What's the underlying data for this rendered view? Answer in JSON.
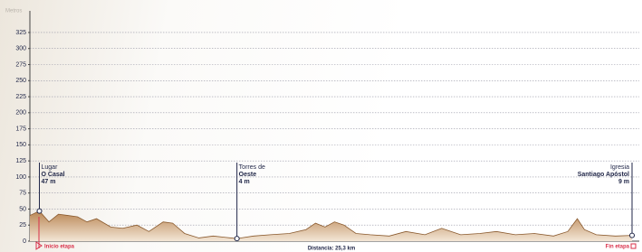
{
  "chart_data": {
    "type": "area",
    "ylabel": "Metros",
    "xlabel": "Distancia: 25,3 km",
    "x": [
      0,
      0.4,
      0.8,
      1.2,
      1.6,
      2,
      2.4,
      2.8,
      3.4,
      3.9,
      4.5,
      5,
      5.6,
      6,
      6.5,
      7.1,
      7.7,
      8.2,
      8.7,
      9.4,
      10.1,
      10.9,
      11.6,
      12,
      12.4,
      12.8,
      13.2,
      13.7,
      14.3,
      15.1,
      15.8,
      16.6,
      17.3,
      18.1,
      18.9,
      19.6,
      20.4,
      21.2,
      22,
      22.6,
      23,
      23.3,
      23.8,
      24.6,
      25.3
    ],
    "values": [
      40,
      47,
      30,
      42,
      40,
      38,
      30,
      35,
      22,
      20,
      25,
      15,
      30,
      28,
      12,
      5,
      8,
      6,
      4,
      8,
      10,
      12,
      18,
      28,
      22,
      30,
      25,
      12,
      10,
      8,
      15,
      10,
      20,
      10,
      12,
      15,
      10,
      12,
      8,
      15,
      35,
      18,
      10,
      8,
      9
    ],
    "color": "#b98552",
    "line_color": "#8a5a2e",
    "xlim": [
      0,
      25.3
    ],
    "ylim": [
      0,
      340
    ],
    "yticks": [
      0,
      25,
      50,
      75,
      100,
      125,
      150,
      175,
      200,
      225,
      250,
      275,
      300,
      325
    ],
    "grid": true,
    "annotations": [
      {
        "x": 0.4,
        "y": 47,
        "place": "Lugar",
        "name": "O Casal",
        "label": "47 m"
      },
      {
        "x": 8.7,
        "y": 4,
        "place": "Torres de",
        "name": "Oeste",
        "label": "4 m"
      },
      {
        "x": 25.3,
        "y": 9,
        "place": "Igresia",
        "name": "Santiago Apóstol",
        "label": "9 m"
      }
    ],
    "start_label": "Inicio etapa",
    "end_label": "Fin etapa"
  }
}
